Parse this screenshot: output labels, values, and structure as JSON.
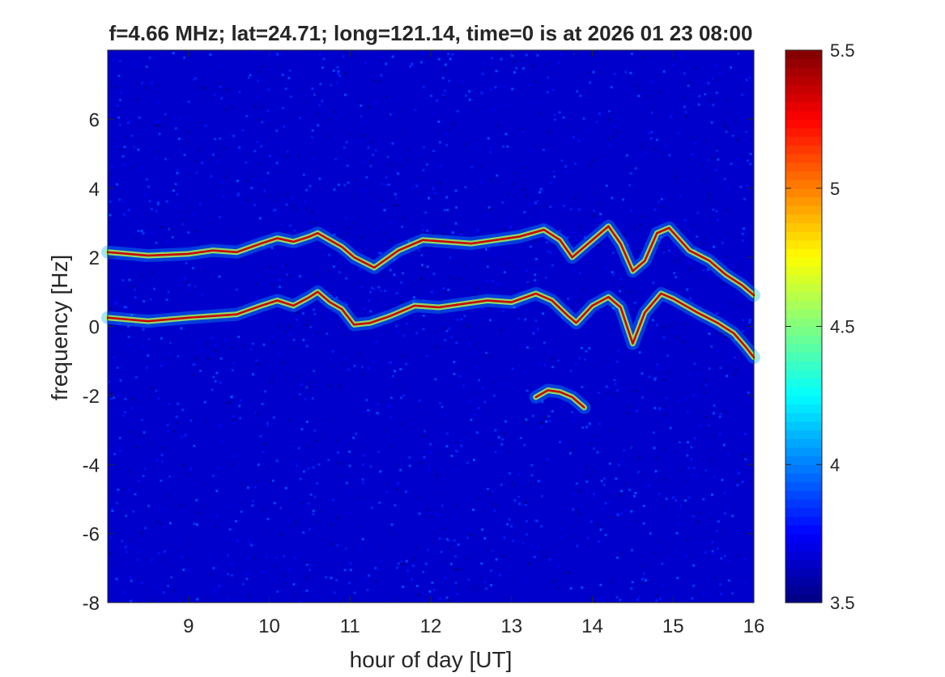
{
  "chart_data": {
    "type": "heatmap",
    "title": "f=4.66 MHz;  lat=24.71; long=121.14, time=0 is at 2026 01 23 08:00",
    "xlabel": "hour of day [UT]",
    "ylabel": "frequency [Hz]",
    "xlim": [
      8,
      16
    ],
    "ylim": [
      -8,
      8
    ],
    "xticks": [
      9,
      10,
      11,
      12,
      13,
      14,
      15,
      16
    ],
    "yticks": [
      -8,
      -6,
      -4,
      -2,
      0,
      2,
      4,
      6
    ],
    "colorbar": {
      "range": [
        3.5,
        5.5
      ],
      "ticks": [
        3.5,
        4,
        4.5,
        5,
        5.5
      ],
      "colormap": "jet"
    },
    "background_level": 3.65,
    "traces": [
      {
        "x": [
          8.0,
          8.5,
          9.0,
          9.3,
          9.6,
          9.9,
          10.1,
          10.3,
          10.5,
          10.6,
          10.75,
          10.9,
          11.05,
          11.25,
          11.5,
          11.8,
          12.1,
          12.4,
          12.7,
          13.0,
          13.3,
          13.5,
          13.7,
          13.8,
          14.0,
          14.2,
          14.35,
          14.5,
          14.65,
          14.85,
          15.0,
          15.3,
          15.55,
          15.75,
          15.9,
          16.0
        ],
        "y": [
          0.25,
          0.15,
          0.25,
          0.3,
          0.35,
          0.6,
          0.75,
          0.6,
          0.85,
          1.0,
          0.7,
          0.5,
          0.05,
          0.1,
          0.3,
          0.6,
          0.55,
          0.65,
          0.75,
          0.7,
          0.95,
          0.75,
          0.3,
          0.1,
          0.6,
          0.85,
          0.55,
          -0.5,
          0.4,
          0.95,
          0.8,
          0.4,
          0.1,
          -0.2,
          -0.6,
          -0.9
        ]
      },
      {
        "x": [
          8.0,
          8.5,
          9.0,
          9.3,
          9.6,
          9.9,
          10.1,
          10.3,
          10.5,
          10.6,
          10.75,
          10.9,
          11.05,
          11.3,
          11.6,
          11.9,
          12.2,
          12.5,
          12.8,
          13.1,
          13.4,
          13.6,
          13.75,
          13.9,
          14.05,
          14.2,
          14.35,
          14.5,
          14.65,
          14.8,
          14.95,
          15.2,
          15.45,
          15.65,
          15.85,
          16.0
        ],
        "y": [
          2.15,
          2.05,
          2.1,
          2.2,
          2.15,
          2.4,
          2.55,
          2.45,
          2.6,
          2.7,
          2.5,
          2.3,
          2.0,
          1.7,
          2.2,
          2.5,
          2.45,
          2.4,
          2.5,
          2.6,
          2.8,
          2.5,
          2.0,
          2.3,
          2.6,
          2.9,
          2.4,
          1.6,
          1.9,
          2.7,
          2.85,
          2.2,
          1.9,
          1.5,
          1.2,
          0.9
        ]
      },
      {
        "x": [
          13.3,
          13.45,
          13.6,
          13.75,
          13.9
        ],
        "y": [
          -2.05,
          -1.85,
          -1.9,
          -2.05,
          -2.35
        ]
      }
    ]
  }
}
